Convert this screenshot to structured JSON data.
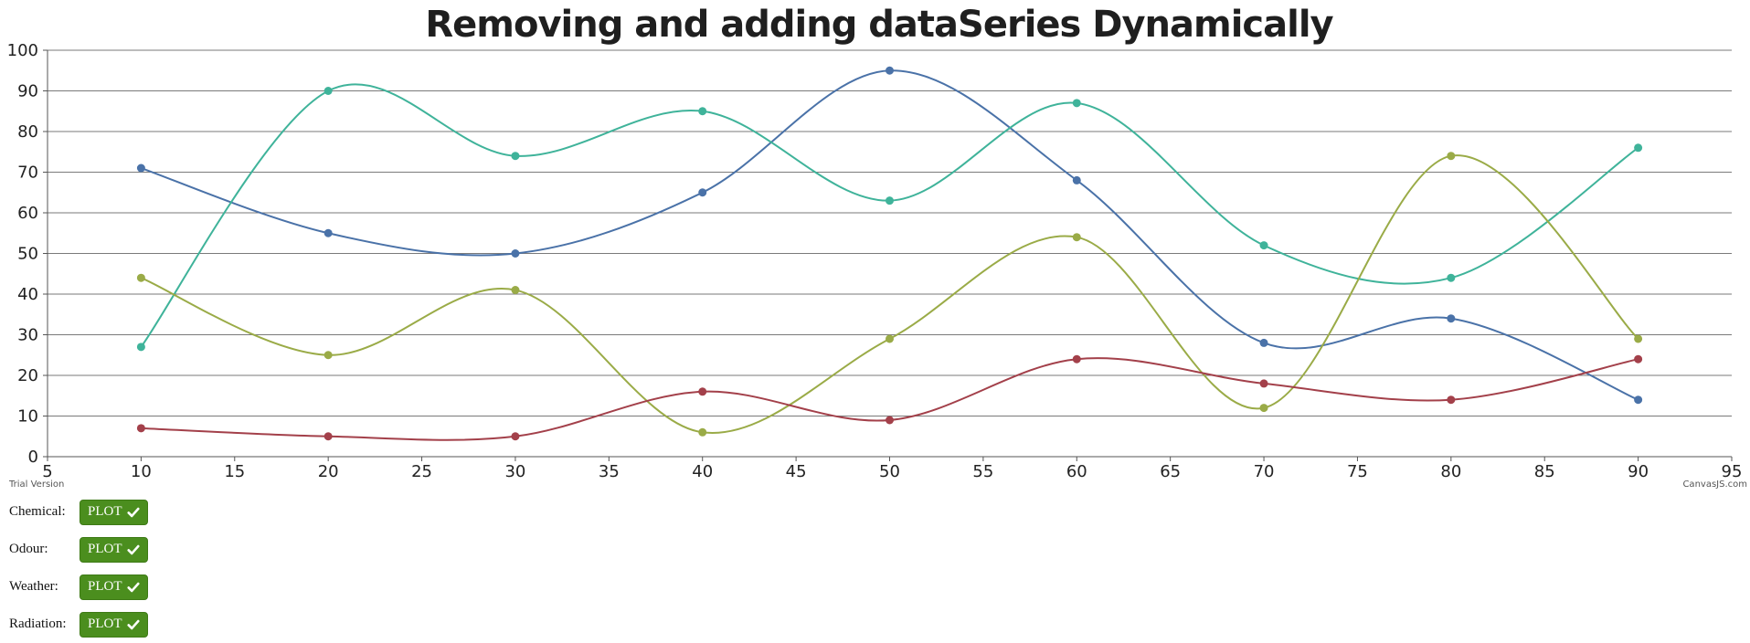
{
  "chart_data": {
    "type": "line",
    "title": "Removing and adding dataSeries Dynamically",
    "x": [
      10,
      20,
      30,
      40,
      50,
      60,
      70,
      80,
      90
    ],
    "xlim": [
      5,
      95
    ],
    "ylim": [
      0,
      100
    ],
    "xticks": [
      "5",
      "10",
      "15",
      "20",
      "25",
      "30",
      "35",
      "40",
      "45",
      "50",
      "55",
      "60",
      "65",
      "70",
      "75",
      "80",
      "85",
      "90",
      "95"
    ],
    "yticks": [
      "0",
      "10",
      "20",
      "30",
      "40",
      "50",
      "60",
      "70",
      "80",
      "90",
      "100"
    ],
    "grid": true,
    "series": [
      {
        "color": "#4a72a8",
        "values": [
          71,
          55,
          50,
          65,
          95,
          68,
          28,
          34,
          14
        ]
      },
      {
        "color": "#3fb39a",
        "values": [
          27,
          90,
          74,
          85,
          63,
          87,
          52,
          44,
          76
        ]
      },
      {
        "color": "#9aab47",
        "values": [
          44,
          25,
          41,
          6,
          29,
          54,
          12,
          74,
          29
        ]
      },
      {
        "color": "#a3404a",
        "values": [
          7,
          5,
          5,
          16,
          9,
          24,
          18,
          14,
          24
        ]
      }
    ]
  },
  "watermark": {
    "left": "Trial Version",
    "right": "CanvasJS.com"
  },
  "controls": [
    {
      "label": "Chemical:",
      "button": "PLOT"
    },
    {
      "label": "Odour:",
      "button": "PLOT"
    },
    {
      "label": "Weather:",
      "button": "PLOT"
    },
    {
      "label": "Radiation:",
      "button": "PLOT"
    }
  ],
  "icons": {
    "button_icon": "check-icon"
  }
}
